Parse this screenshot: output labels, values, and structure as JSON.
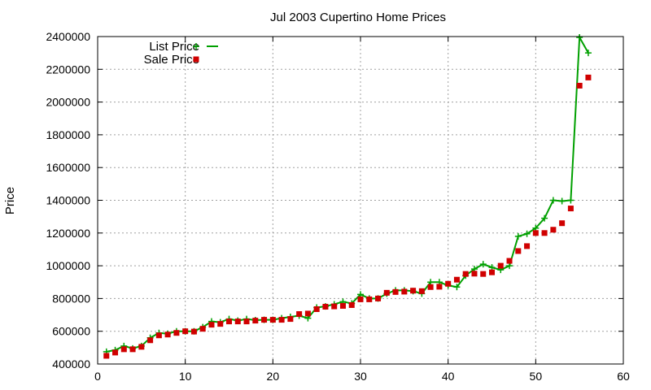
{
  "chart_data": {
    "type": "line",
    "title": "Jul 2003 Cupertino Home Prices",
    "xlabel": "",
    "ylabel": "Price",
    "xlim": [
      0,
      60
    ],
    "ylim": [
      400000,
      2400000
    ],
    "xticks": [
      0,
      10,
      20,
      30,
      40,
      50,
      60
    ],
    "yticks": [
      400000,
      600000,
      800000,
      1000000,
      1200000,
      1400000,
      1600000,
      1800000,
      2000000,
      2200000,
      2400000
    ],
    "grid": true,
    "legend_position": "top-left",
    "series": [
      {
        "name": "List Price",
        "style": "line-plus",
        "color": "#00a000",
        "x": [
          1,
          2,
          3,
          4,
          5,
          6,
          7,
          8,
          9,
          10,
          11,
          12,
          13,
          14,
          15,
          16,
          17,
          18,
          19,
          20,
          21,
          22,
          23,
          24,
          25,
          26,
          27,
          28,
          29,
          30,
          31,
          32,
          33,
          34,
          35,
          36,
          37,
          38,
          39,
          40,
          41,
          42,
          43,
          44,
          45,
          46,
          47,
          48,
          49,
          50,
          51,
          52,
          53,
          54,
          55,
          56
        ],
        "values": [
          475000,
          485000,
          510000,
          495000,
          510000,
          560000,
          590000,
          585000,
          600000,
          600000,
          600000,
          625000,
          660000,
          655000,
          675000,
          665000,
          675000,
          668000,
          670000,
          670000,
          680000,
          688000,
          695000,
          680000,
          745000,
          752000,
          765000,
          780000,
          770000,
          825000,
          800000,
          800000,
          830000,
          850000,
          850000,
          845000,
          830000,
          900000,
          900000,
          880000,
          870000,
          940000,
          980000,
          1010000,
          990000,
          975000,
          1000000,
          1180000,
          1195000,
          1230000,
          1290000,
          1400000,
          1395000,
          1400000,
          2395000,
          2300000
        ]
      },
      {
        "name": "Sale Price",
        "style": "square",
        "color": "#d00000",
        "x": [
          1,
          2,
          3,
          4,
          5,
          6,
          7,
          8,
          9,
          10,
          11,
          12,
          13,
          14,
          15,
          16,
          17,
          18,
          19,
          20,
          21,
          22,
          23,
          24,
          25,
          26,
          27,
          28,
          29,
          30,
          31,
          32,
          33,
          34,
          35,
          36,
          37,
          38,
          39,
          40,
          41,
          42,
          43,
          44,
          45,
          46,
          47,
          48,
          49,
          50,
          51,
          52,
          53,
          54,
          55,
          56
        ],
        "values": [
          450000,
          470000,
          490000,
          490000,
          505000,
          545000,
          575000,
          580000,
          590000,
          600000,
          598000,
          615000,
          640000,
          645000,
          660000,
          660000,
          660000,
          665000,
          670000,
          670000,
          670000,
          675000,
          705000,
          708000,
          735000,
          750000,
          752000,
          755000,
          760000,
          795000,
          795000,
          800000,
          835000,
          840000,
          842000,
          848000,
          845000,
          870000,
          872000,
          890000,
          915000,
          950000,
          952000,
          950000,
          960000,
          1000000,
          1030000,
          1090000,
          1120000,
          1200000,
          1200000,
          1220000,
          1260000,
          1350000,
          2100000,
          2150000
        ]
      }
    ]
  }
}
